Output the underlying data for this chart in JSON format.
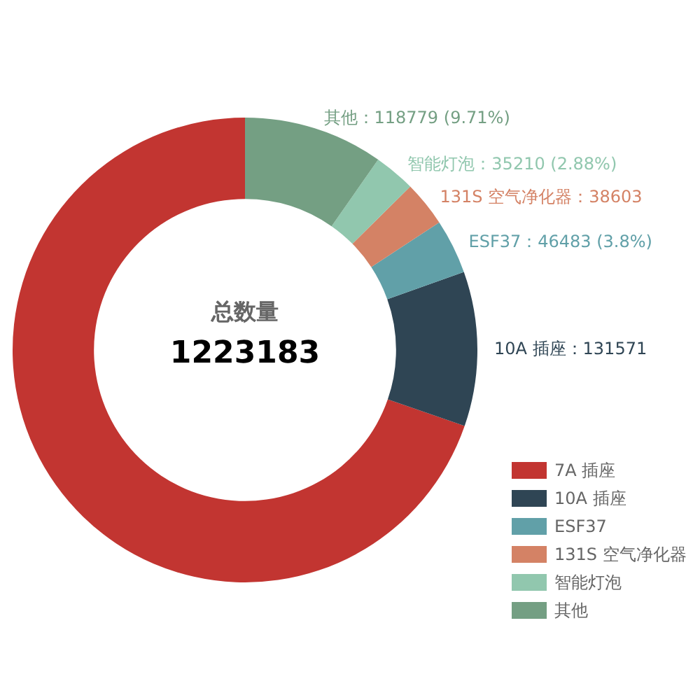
{
  "chart_data": {
    "type": "donut",
    "title": "总数量",
    "subtitle": "1223183",
    "categories": [
      "7A 插座",
      "10A 插座",
      "ESF37",
      "131S 空气净化器",
      "智能灯泡",
      "其他"
    ],
    "values": [
      852537,
      131571,
      46483,
      38603,
      35210,
      118779
    ],
    "colors": [
      "#c23531",
      "#2f4554",
      "#61a0a8",
      "#d48265",
      "#91c7ae",
      "#749f83"
    ],
    "value_labels": [
      null,
      "10A 插座：131571",
      "ESF37：46483 (3.8%)",
      "131S 空气净化器：38603",
      "智能灯泡：35210 (2.88%)",
      "其他：118779 (9.71%)"
    ],
    "legend": "right"
  }
}
